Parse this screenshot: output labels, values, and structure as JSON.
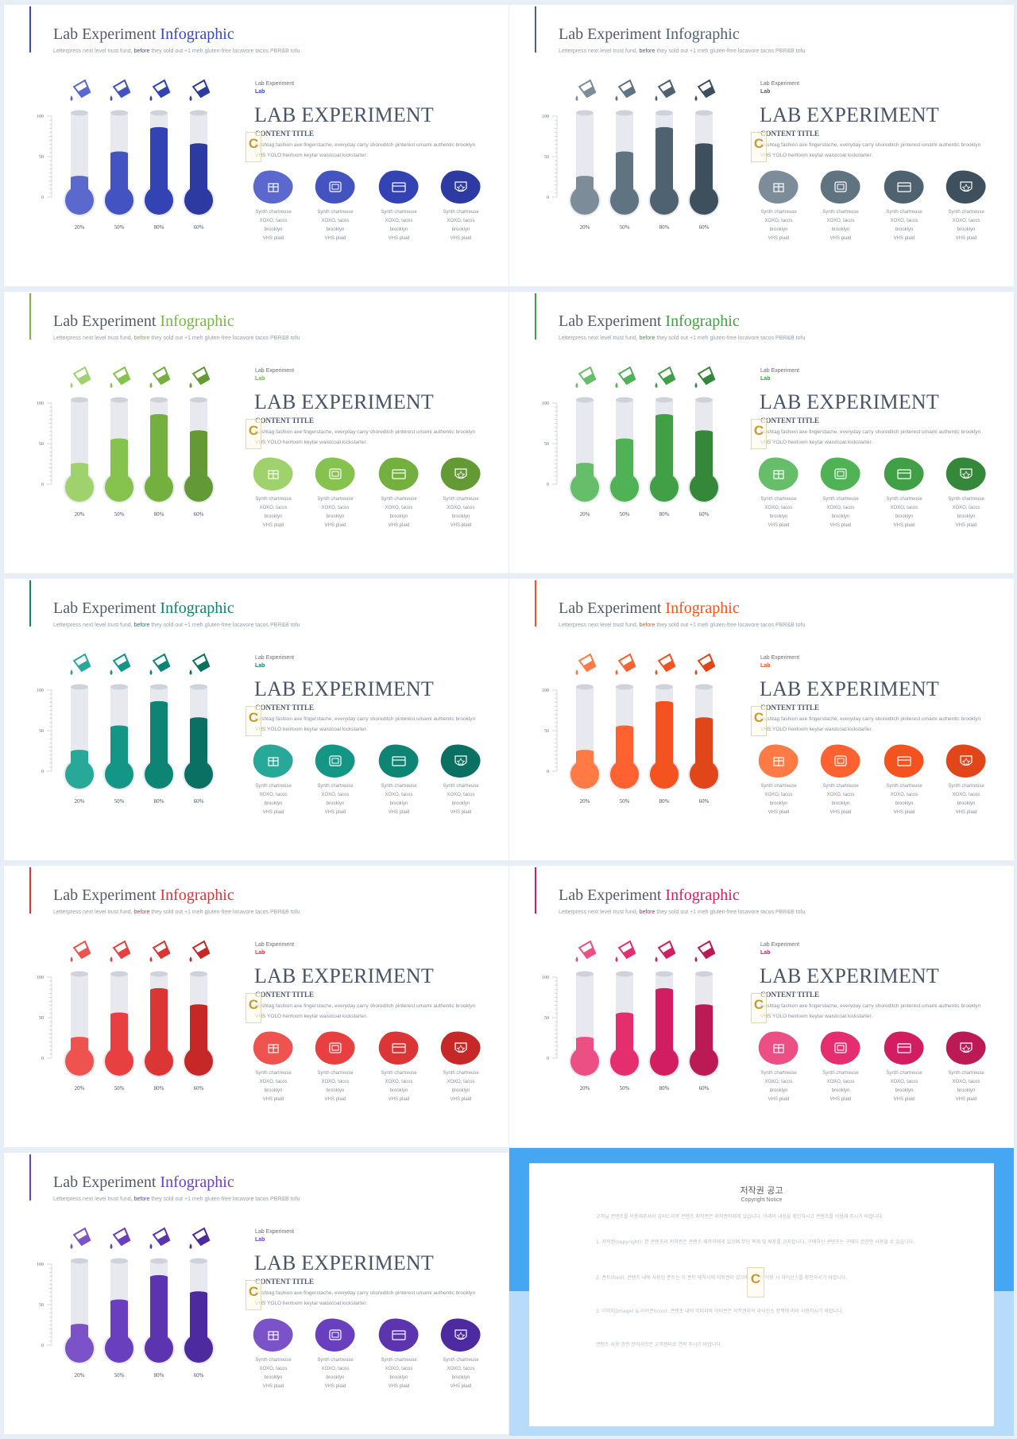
{
  "slide_common": {
    "title_main": "Lab Experiment",
    "title_highlight": "Infographic",
    "subtitle_a": "Letterpress next level trust fund, ",
    "subtitle_before": "before",
    "subtitle_b": " they sold out +1 meh gluten-free locavore tacos PBR&B tofu",
    "small_label_1": "Lab Experiment",
    "small_label_2": "Lab",
    "big_title": "LAB EXPERIMENT",
    "content_title": "CONTENT TITLE",
    "body_text": "Hashtag fashion axe fingerstache, everyday carry shoreditch pinterest umami authentic brooklyn VHS YOLO heirloom keytar waistcoat kickstarter.",
    "watermark_letter": "C",
    "y_axis_ticks": [
      "100",
      "50",
      "0"
    ],
    "tube_labels": [
      "20%",
      "50%",
      "80%",
      "60%"
    ],
    "tube_levels": [
      0.2,
      0.5,
      0.8,
      0.6
    ],
    "icon_captions": [
      "Synth chartreuse",
      "XOXO, tacos brooklyn",
      "VHS plaid"
    ],
    "icon_names": [
      "gift-icon",
      "image-icon",
      "card-icon",
      "badge-icon"
    ]
  },
  "slides": [
    {
      "theme": "blue",
      "colors": [
        "#5b69cf",
        "#4453c2",
        "#3443b4",
        "#2d3aa2"
      ],
      "accent": "#3a49b8"
    },
    {
      "theme": "slate",
      "colors": [
        "#7d8c99",
        "#607380",
        "#4f6270",
        "#3e505d"
      ],
      "accent": "#4f6270"
    },
    {
      "theme": "light-green",
      "colors": [
        "#9fd26c",
        "#86c24e",
        "#74b040",
        "#649a35"
      ],
      "accent": "#78b743"
    },
    {
      "theme": "green",
      "colors": [
        "#66be6a",
        "#4fb254",
        "#41a046",
        "#35873a"
      ],
      "accent": "#41a046"
    },
    {
      "theme": "teal",
      "colors": [
        "#28a898",
        "#149686",
        "#0d8474",
        "#0a7062"
      ],
      "accent": "#0d8474"
    },
    {
      "theme": "orange",
      "colors": [
        "#ff7a45",
        "#ff6130",
        "#f4521e",
        "#e0461a"
      ],
      "accent": "#f4521e"
    },
    {
      "theme": "red",
      "colors": [
        "#ef5350",
        "#e84040",
        "#dc3535",
        "#c62828"
      ],
      "accent": "#dc3535"
    },
    {
      "theme": "pink",
      "colors": [
        "#ec4f84",
        "#e52e6e",
        "#d21e60",
        "#bb1a55"
      ],
      "accent": "#d21e60"
    },
    {
      "theme": "purple",
      "colors": [
        "#7c52c8",
        "#6a3fbf",
        "#5c34b0",
        "#4d2aa0"
      ],
      "accent": "#6a3fbf"
    }
  ],
  "notice": {
    "title": "저작권 공고",
    "subtitle": "Copyright Notice",
    "paragraphs": [
      "고객님 콘텐츠를 이용해주셔서 감사드리며 콘텐츠 저작권은 저작권자에게 있습니다. 아래의 내용을 확인하시고 콘텐츠를 이용해 주시기 바랍니다.",
      "1. 저작권(copyright): 본 콘텐츠의 저작권은 콘텐츠 제작자에게 있으며 무단 복제 및 배포를 금지합니다. 구매하신 콘텐츠는 구매자 본인만 사용할 수 있습니다.",
      "2. 폰트(font): 콘텐츠 내에 사용된 폰트는 각 폰트 제작사에 저작권이 있으며 상업적 이용 시 라이선스를 확인하시기 바랍니다.",
      "3. 이미지(image) & 아이콘(icon): 콘텐츠 내의 이미지와 아이콘은 저작권자의 라이선스 정책에 따라 사용하시기 바랍니다.",
      "콘텐츠 사용 관련 문의사항은 고객센터로 연락 주시기 바랍니다."
    ]
  }
}
